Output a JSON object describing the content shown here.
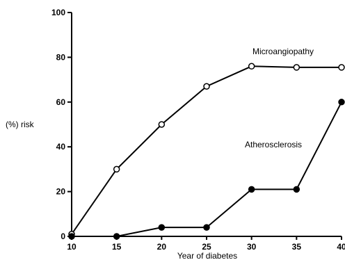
{
  "chart_data": {
    "type": "line",
    "title": "",
    "xlabel": "Year of diabetes",
    "ylabel": "(%) risk",
    "xlim": [
      10,
      40
    ],
    "ylim": [
      0,
      100
    ],
    "xticks": [
      10,
      15,
      20,
      25,
      30,
      35,
      40
    ],
    "yticks": [
      0,
      20,
      40,
      60,
      80,
      100
    ],
    "grid": false,
    "legend": "none",
    "x": [
      10,
      15,
      20,
      25,
      30,
      35,
      40
    ],
    "series": [
      {
        "name": "Microangiopathy",
        "marker": "open-circle",
        "values": [
          1,
          30,
          50,
          67,
          76,
          75.5,
          75.5
        ]
      },
      {
        "name": "Atherosclerosis",
        "marker": "filled-circle",
        "values": [
          0,
          0,
          4,
          4,
          21,
          21,
          60
        ]
      }
    ]
  }
}
